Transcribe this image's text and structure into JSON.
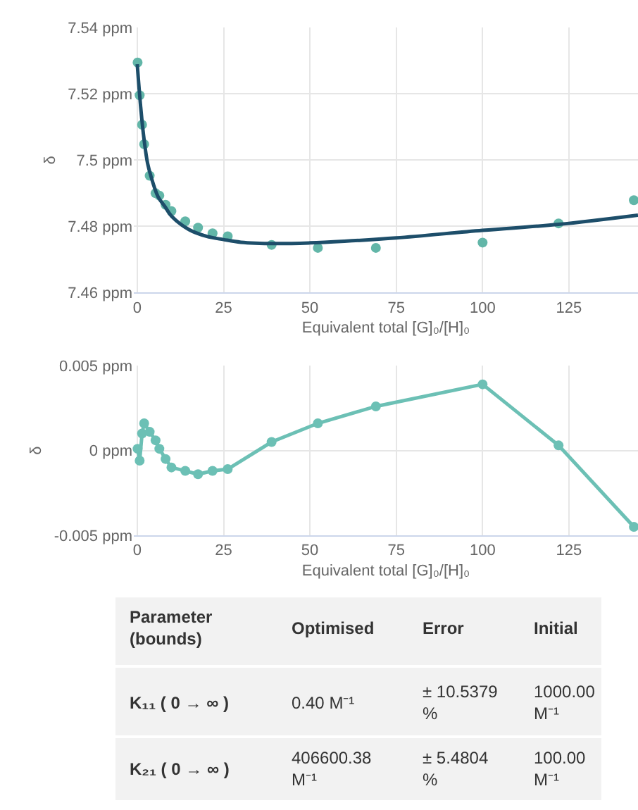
{
  "chart_data": [
    {
      "type": "scatter",
      "xlabel": "Equivalent total [G]₀/[H]₀",
      "ylabel": "δ",
      "xlim": [
        -1,
        145
      ],
      "xticks": [
        0,
        25,
        50,
        75,
        100,
        125
      ],
      "ylim": [
        7.46,
        7.54
      ],
      "yticks": [
        {
          "value": 7.46,
          "label": "7.46 ppm"
        },
        {
          "value": 7.48,
          "label": "7.48 ppm"
        },
        {
          "value": 7.5,
          "label": "7.5 ppm"
        },
        {
          "value": 7.52,
          "label": "7.52 ppm"
        },
        {
          "value": 7.54,
          "label": "7.54 ppm"
        }
      ],
      "grid": true,
      "series": [
        {
          "type": "scatter",
          "marker": "circle",
          "color": "#62b6a8",
          "x": [
            0.1,
            0.7,
            1.4,
            2.0,
            3.6,
            5.3,
            6.4,
            8.2,
            9.9,
            13.9,
            17.6,
            21.8,
            26.2,
            38.9,
            52.3,
            69.1,
            100,
            122,
            143.8
          ],
          "values": [
            7.5295,
            7.5196,
            7.5107,
            7.5048,
            7.4953,
            7.49,
            7.4893,
            7.4865,
            7.4846,
            7.4815,
            7.4796,
            7.4779,
            7.477,
            7.4744,
            7.4735,
            7.4735,
            7.4751,
            7.4809,
            7.4879
          ]
        },
        {
          "type": "line",
          "marker": "none",
          "color": "#1d4e6a",
          "x": [
            0,
            1,
            2,
            3,
            4,
            6,
            8,
            10,
            15,
            20,
            25,
            30,
            40,
            50,
            60,
            75,
            100,
            122,
            145
          ],
          "values": [
            7.529,
            7.516,
            7.506,
            7.499,
            7.495,
            7.489,
            7.486,
            7.483,
            7.479,
            7.477,
            7.476,
            7.4752,
            7.4748,
            7.475,
            7.4755,
            7.4765,
            7.4788,
            7.4806,
            7.4834
          ]
        }
      ]
    },
    {
      "type": "line",
      "xlabel": "Equivalent total [G]₀/[H]₀",
      "ylabel": "δ",
      "xlim": [
        -1,
        145
      ],
      "xticks": [
        0,
        25,
        50,
        75,
        100,
        125
      ],
      "ylim": [
        -0.005,
        0.005
      ],
      "yticks": [
        {
          "value": -0.005,
          "label": "-0.005 ppm"
        },
        {
          "value": 0,
          "label": "0 ppm"
        },
        {
          "value": 0.005,
          "label": "0.005 ppm"
        }
      ],
      "grid": true,
      "marker": "circle",
      "series": [
        {
          "color": "#6cc0b5",
          "x": [
            0.1,
            0.7,
            1.4,
            2.0,
            3.6,
            5.3,
            6.4,
            8.2,
            9.9,
            13.9,
            17.6,
            21.8,
            26.2,
            38.9,
            52.3,
            69.1,
            100,
            122,
            143.8
          ],
          "values": [
            0.0001,
            -0.0006,
            0.001,
            0.0016,
            0.0011,
            0.0006,
            0.0001,
            -0.0005,
            -0.001,
            -0.0012,
            -0.0014,
            -0.0012,
            -0.0011,
            0.0005,
            0.0016,
            0.0026,
            0.0039,
            0.0003,
            -0.0045
          ]
        }
      ]
    },
    {
      "type": "other",
      "annotations": [
        "Parameter\n(bounds)",
        "Optimised",
        "Error",
        "Initial",
        "K₁₁ ( 0 → ∞ )",
        "0.40 M⁻¹",
        "± 10.5379\n%",
        "1000.00\nM⁻¹",
        "K₂₁ ( 0 → ∞ )",
        "406600.38\nM⁻¹",
        "± 5.4804\n%",
        "100.00\nM⁻¹"
      ]
    }
  ]
}
